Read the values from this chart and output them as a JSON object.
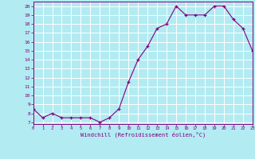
{
  "x": [
    0,
    1,
    2,
    3,
    4,
    5,
    6,
    7,
    8,
    9,
    10,
    11,
    12,
    13,
    14,
    15,
    16,
    17,
    18,
    19,
    20,
    21,
    22,
    23
  ],
  "y": [
    8.5,
    7.5,
    8.0,
    7.5,
    7.5,
    7.5,
    7.5,
    7.0,
    7.5,
    8.5,
    11.5,
    14.0,
    15.5,
    17.5,
    18.0,
    20.0,
    19.0,
    19.0,
    19.0,
    20.0,
    20.0,
    18.5,
    17.5,
    15.0
  ],
  "line_color": "#800080",
  "marker": "+",
  "marker_size": 3,
  "background_color": "#b2ebf2",
  "grid_color": "#ffffff",
  "xlabel": "Windchill (Refroidissement éolien,°C)",
  "ylabel_ticks": [
    7,
    8,
    9,
    10,
    11,
    12,
    13,
    14,
    15,
    16,
    17,
    18,
    19,
    20
  ],
  "xlim": [
    0,
    23
  ],
  "ylim": [
    6.8,
    20.5
  ],
  "xticks": [
    0,
    1,
    2,
    3,
    4,
    5,
    6,
    7,
    8,
    9,
    10,
    11,
    12,
    13,
    14,
    15,
    16,
    17,
    18,
    19,
    20,
    21,
    22,
    23
  ],
  "xlabel_color": "#800080",
  "tick_color": "#800080",
  "spine_color": "#800080"
}
